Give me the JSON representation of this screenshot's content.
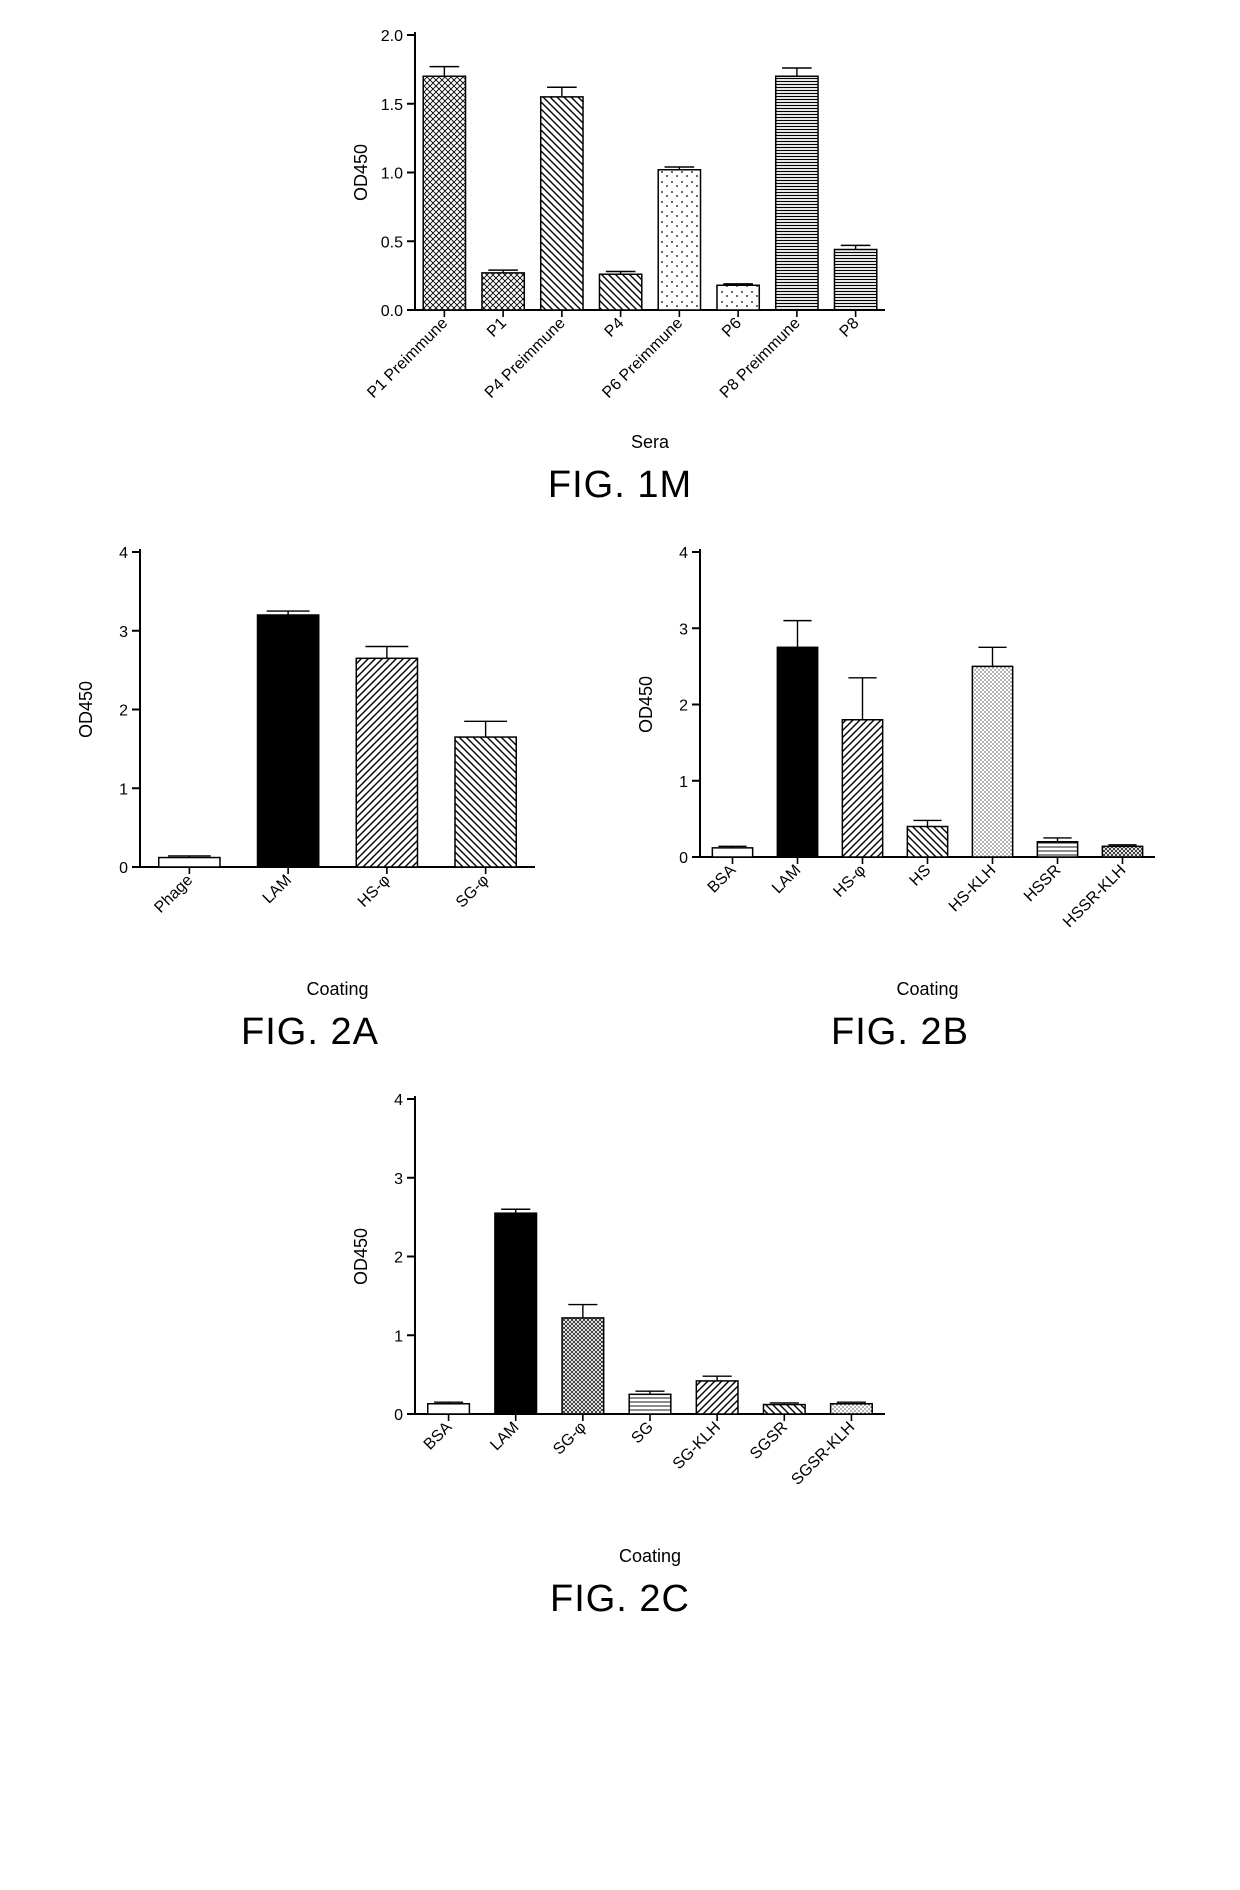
{
  "fig1m": {
    "type": "bar",
    "title": "FIG. 1M",
    "ylabel": "OD450",
    "xlabel": "Sera",
    "ylim": [
      0,
      2.0
    ],
    "ytick_step": 0.5,
    "categories": [
      "P1 Preimmune",
      "P1",
      "P4 Preimmune",
      "P4",
      "P6 Preimmune",
      "P6",
      "P8 Preimmune",
      "P8"
    ],
    "values": [
      1.7,
      0.27,
      1.55,
      0.26,
      1.02,
      0.18,
      1.7,
      0.44
    ],
    "errors": [
      0.07,
      0.02,
      0.07,
      0.02,
      0.02,
      0.01,
      0.06,
      0.03
    ],
    "patterns": [
      "crosshatch",
      "crosshatch",
      "diag-nw",
      "diag-nw",
      "dots",
      "dots",
      "hstripes",
      "hstripes"
    ],
    "axis_fontsize": 18,
    "tick_fontsize": 16,
    "bar_stroke": "#000000",
    "axis_color": "#000000",
    "background_color": "#ffffff",
    "bar_width": 0.72
  },
  "fig2a": {
    "type": "bar",
    "title": "FIG. 2A",
    "ylabel": "OD450",
    "xlabel": "Coating",
    "ylim": [
      0,
      4
    ],
    "ytick_step": 1,
    "categories": [
      "Phage",
      "LAM",
      "HS-φ",
      "SG-φ"
    ],
    "values": [
      0.12,
      3.2,
      2.65,
      1.65
    ],
    "errors": [
      0.02,
      0.05,
      0.15,
      0.2
    ],
    "patterns": [
      "blank",
      "solid",
      "diag-ne",
      "diag-nw"
    ],
    "axis_fontsize": 18,
    "tick_fontsize": 16,
    "bar_stroke": "#000000",
    "axis_color": "#000000",
    "background_color": "#ffffff",
    "bar_width": 0.62
  },
  "fig2b": {
    "type": "bar",
    "title": "FIG. 2B",
    "ylabel": "OD450",
    "xlabel": "Coating",
    "ylim": [
      0,
      4
    ],
    "ytick_step": 1,
    "categories": [
      "BSA",
      "LAM",
      "HS-φ",
      "HS",
      "HS-KLH",
      "HSSR",
      "HSSR-KLH"
    ],
    "values": [
      0.12,
      2.75,
      1.8,
      0.4,
      2.5,
      0.2,
      0.14
    ],
    "errors": [
      0.02,
      0.35,
      0.55,
      0.08,
      0.25,
      0.05,
      0.02
    ],
    "patterns": [
      "blank",
      "solid",
      "diag-ne",
      "diag-nw",
      "dots-fine",
      "hstripes-fine",
      "crosshatch-fine"
    ],
    "axis_fontsize": 18,
    "tick_fontsize": 16,
    "bar_stroke": "#000000",
    "axis_color": "#000000",
    "background_color": "#ffffff",
    "bar_width": 0.62
  },
  "fig2c": {
    "type": "bar",
    "title": "FIG. 2C",
    "ylabel": "OD450",
    "xlabel": "Coating",
    "ylim": [
      0,
      4
    ],
    "ytick_step": 1,
    "categories": [
      "BSA",
      "LAM",
      "SG-φ",
      "SG",
      "SG-KLH",
      "SGSR",
      "SGSR-KLH"
    ],
    "values": [
      0.13,
      2.55,
      1.22,
      0.25,
      0.42,
      0.12,
      0.13
    ],
    "errors": [
      0.02,
      0.05,
      0.17,
      0.04,
      0.06,
      0.02,
      0.02
    ],
    "patterns": [
      "blank",
      "solid",
      "crosshatch-fine",
      "hstripes-fine",
      "diag-ne",
      "diag-nw",
      "dots-fine"
    ],
    "axis_fontsize": 18,
    "tick_fontsize": 16,
    "bar_stroke": "#000000",
    "axis_color": "#000000",
    "background_color": "#ffffff",
    "bar_width": 0.62
  }
}
